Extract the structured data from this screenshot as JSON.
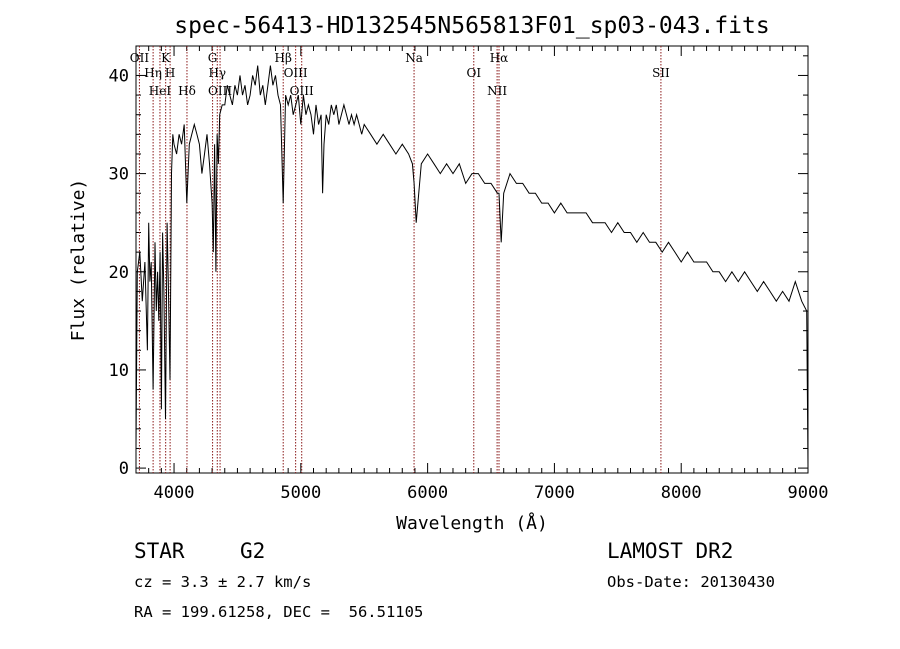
{
  "chart_data": {
    "type": "line",
    "title": "spec-56413-HD132545N565813F01_sp03-043.fits",
    "xlabel": "Wavelength (Å)",
    "ylabel": "Flux (relative)",
    "xlim": [
      3700,
      9000
    ],
    "ylim": [
      -0.5,
      43
    ],
    "xticks": [
      4000,
      5000,
      6000,
      7000,
      8000,
      9000
    ],
    "yticks": [
      0,
      10,
      20,
      30,
      40
    ],
    "grid": false,
    "series": [
      {
        "x": [
          3700,
          3710,
          3730,
          3750,
          3770,
          3790,
          3800,
          3810,
          3820,
          3835,
          3850,
          3860,
          3870,
          3880,
          3890,
          3900,
          3910,
          3920,
          3933,
          3945,
          3955,
          3968,
          3980,
          3990,
          4000,
          4020,
          4040,
          4060,
          4080,
          4101,
          4120,
          4140,
          4160,
          4180,
          4200,
          4220,
          4240,
          4260,
          4280,
          4300,
          4310,
          4320,
          4330,
          4340,
          4350,
          4360,
          4380,
          4400,
          4420,
          4440,
          4460,
          4480,
          4500,
          4520,
          4540,
          4560,
          4580,
          4600,
          4620,
          4640,
          4660,
          4680,
          4700,
          4720,
          4740,
          4760,
          4780,
          4800,
          4820,
          4840,
          4861,
          4880,
          4900,
          4920,
          4940,
          4960,
          4980,
          5000,
          5020,
          5040,
          5060,
          5080,
          5100,
          5120,
          5140,
          5160,
          5172,
          5183,
          5200,
          5220,
          5240,
          5260,
          5280,
          5300,
          5320,
          5340,
          5360,
          5380,
          5400,
          5420,
          5440,
          5460,
          5480,
          5500,
          5550,
          5600,
          5650,
          5700,
          5750,
          5800,
          5850,
          5880,
          5893,
          5910,
          5950,
          6000,
          6050,
          6100,
          6150,
          6200,
          6250,
          6300,
          6350,
          6400,
          6450,
          6500,
          6550,
          6563,
          6580,
          6600,
          6650,
          6700,
          6750,
          6800,
          6850,
          6900,
          6950,
          7000,
          7050,
          7100,
          7150,
          7200,
          7250,
          7300,
          7350,
          7400,
          7450,
          7500,
          7550,
          7600,
          7650,
          7700,
          7750,
          7800,
          7850,
          7900,
          7950,
          8000,
          8050,
          8100,
          8150,
          8200,
          8250,
          8300,
          8350,
          8400,
          8450,
          8500,
          8550,
          8600,
          8650,
          8700,
          8750,
          8800,
          8850,
          8900,
          8950,
          8990,
          9000
        ],
        "values": [
          2,
          20,
          22,
          17,
          21,
          12,
          25,
          19,
          21,
          8,
          23,
          16,
          20,
          15,
          22,
          6,
          24,
          18,
          5,
          25,
          19,
          9,
          30,
          34,
          33,
          32,
          34,
          33,
          35,
          27,
          33,
          34,
          35,
          34,
          33,
          30,
          32,
          34,
          31,
          27,
          22,
          33,
          20,
          34,
          31,
          36,
          37,
          37,
          39,
          38,
          37,
          39,
          38,
          40,
          38,
          39,
          37,
          38,
          40,
          39,
          41,
          38,
          39,
          37,
          39,
          41,
          39,
          40,
          38,
          37,
          27,
          38,
          37,
          38,
          36,
          37,
          38,
          35,
          38,
          36,
          37,
          36,
          34,
          37,
          35,
          36,
          28,
          33,
          36,
          35,
          37,
          36,
          37,
          35,
          36,
          37,
          36,
          35,
          36,
          35,
          36,
          35,
          34,
          35,
          34,
          33,
          34,
          33,
          32,
          33,
          32,
          31,
          29,
          25,
          31,
          32,
          31,
          30,
          31,
          30,
          31,
          29,
          30,
          30,
          29,
          29,
          28,
          28,
          23,
          28,
          30,
          29,
          29,
          28,
          28,
          27,
          27,
          26,
          27,
          26,
          26,
          26,
          26,
          25,
          25,
          25,
          24,
          25,
          24,
          24,
          23,
          24,
          23,
          23,
          22,
          23,
          22,
          21,
          22,
          21,
          21,
          21,
          20,
          20,
          19,
          20,
          19,
          20,
          19,
          18,
          19,
          18,
          17,
          18,
          17,
          19,
          17,
          16,
          0
        ]
      }
    ],
    "lines": [
      {
        "x": 3727,
        "labels": [
          "OII"
        ]
      },
      {
        "x": 3835,
        "labels": [
          "Hη"
        ]
      },
      {
        "x": 3889,
        "labels": [
          "HeI"
        ]
      },
      {
        "x": 3934,
        "labels": [
          "K"
        ]
      },
      {
        "x": 3969,
        "labels": [
          "H"
        ]
      },
      {
        "x": 4102,
        "labels": [
          "Hδ"
        ]
      },
      {
        "x": 4304,
        "labels": [
          "G"
        ]
      },
      {
        "x": 4341,
        "labels": [
          "Hγ"
        ]
      },
      {
        "x": 4363,
        "labels": [
          "OIII"
        ]
      },
      {
        "x": 4861,
        "labels": [
          "Hβ"
        ]
      },
      {
        "x": 4959,
        "labels": [
          "OIII"
        ]
      },
      {
        "x": 5007,
        "labels": [
          "OIII"
        ]
      },
      {
        "x": 5893,
        "labels": [
          "Na"
        ]
      },
      {
        "x": 6364,
        "labels": [
          "OI"
        ]
      },
      {
        "x": 6548,
        "labels": [
          "NII"
        ]
      },
      {
        "x": 6563,
        "labels": [
          "Hα"
        ]
      },
      {
        "x": 7840,
        "labels": [
          "SII"
        ]
      }
    ],
    "line_color": "#8b1a1a",
    "spectrum_color": "#000000"
  },
  "info": {
    "class": "STAR",
    "subclass": "G2",
    "cz": "cz = 3.3 ± 2.7 km/s",
    "coords": "RA = 199.61258, DEC =  56.51105",
    "survey": "LAMOST DR2",
    "obsdate": "Obs-Date: 20130430"
  }
}
